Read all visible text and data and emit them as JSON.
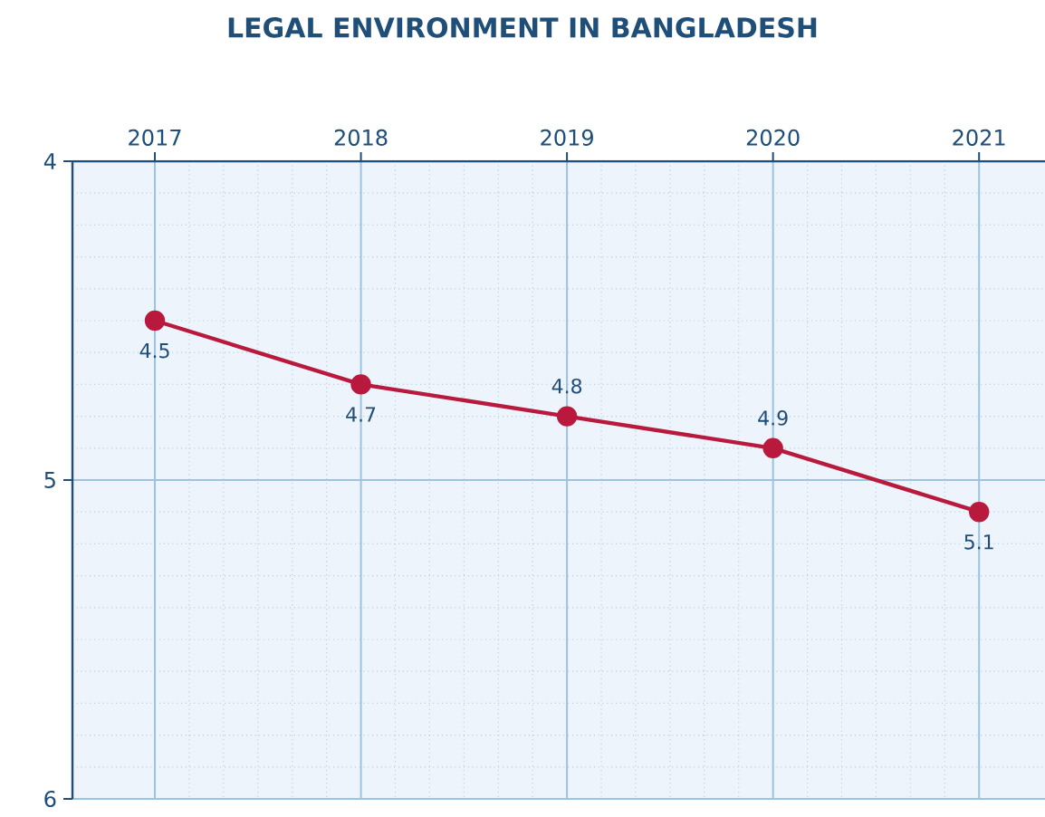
{
  "chart_data": {
    "type": "line",
    "title": "LEGAL ENVIRONMENT IN BANGLADESH",
    "categories": [
      "2017",
      "2018",
      "2019",
      "2020",
      "2021"
    ],
    "series": [
      {
        "color": "#b8193c",
        "values": [
          4.5,
          4.7,
          4.8,
          4.9,
          5.1
        ]
      }
    ],
    "ylim": [
      6,
      4
    ],
    "yticks": [
      4,
      5,
      6
    ],
    "grid": true,
    "marker": "circle",
    "line_style": "solid",
    "data_labels": true
  }
}
